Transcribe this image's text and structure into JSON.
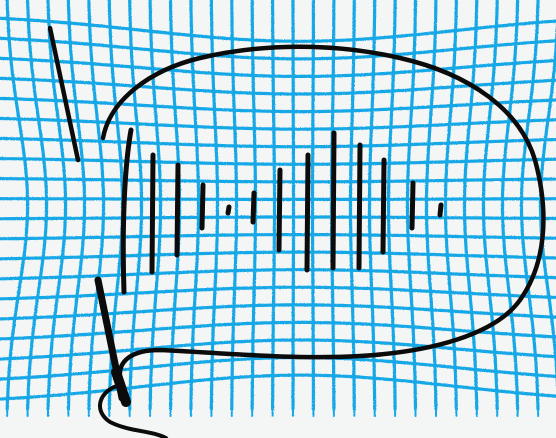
{
  "scene": {
    "description_tags": [
      "hand-drawn",
      "blue-grid",
      "black-ink",
      "microphone",
      "sound-waves"
    ],
    "colors": {
      "paper": "#f4f6f6",
      "grid": "#19a8e6",
      "ink": "#0b0b0b"
    },
    "icons": {
      "grid": "grid-pattern",
      "speaker_outline": "microphone-bubble",
      "waves": "sound-wave-bars",
      "pen_stroke": "pen-line"
    }
  }
}
